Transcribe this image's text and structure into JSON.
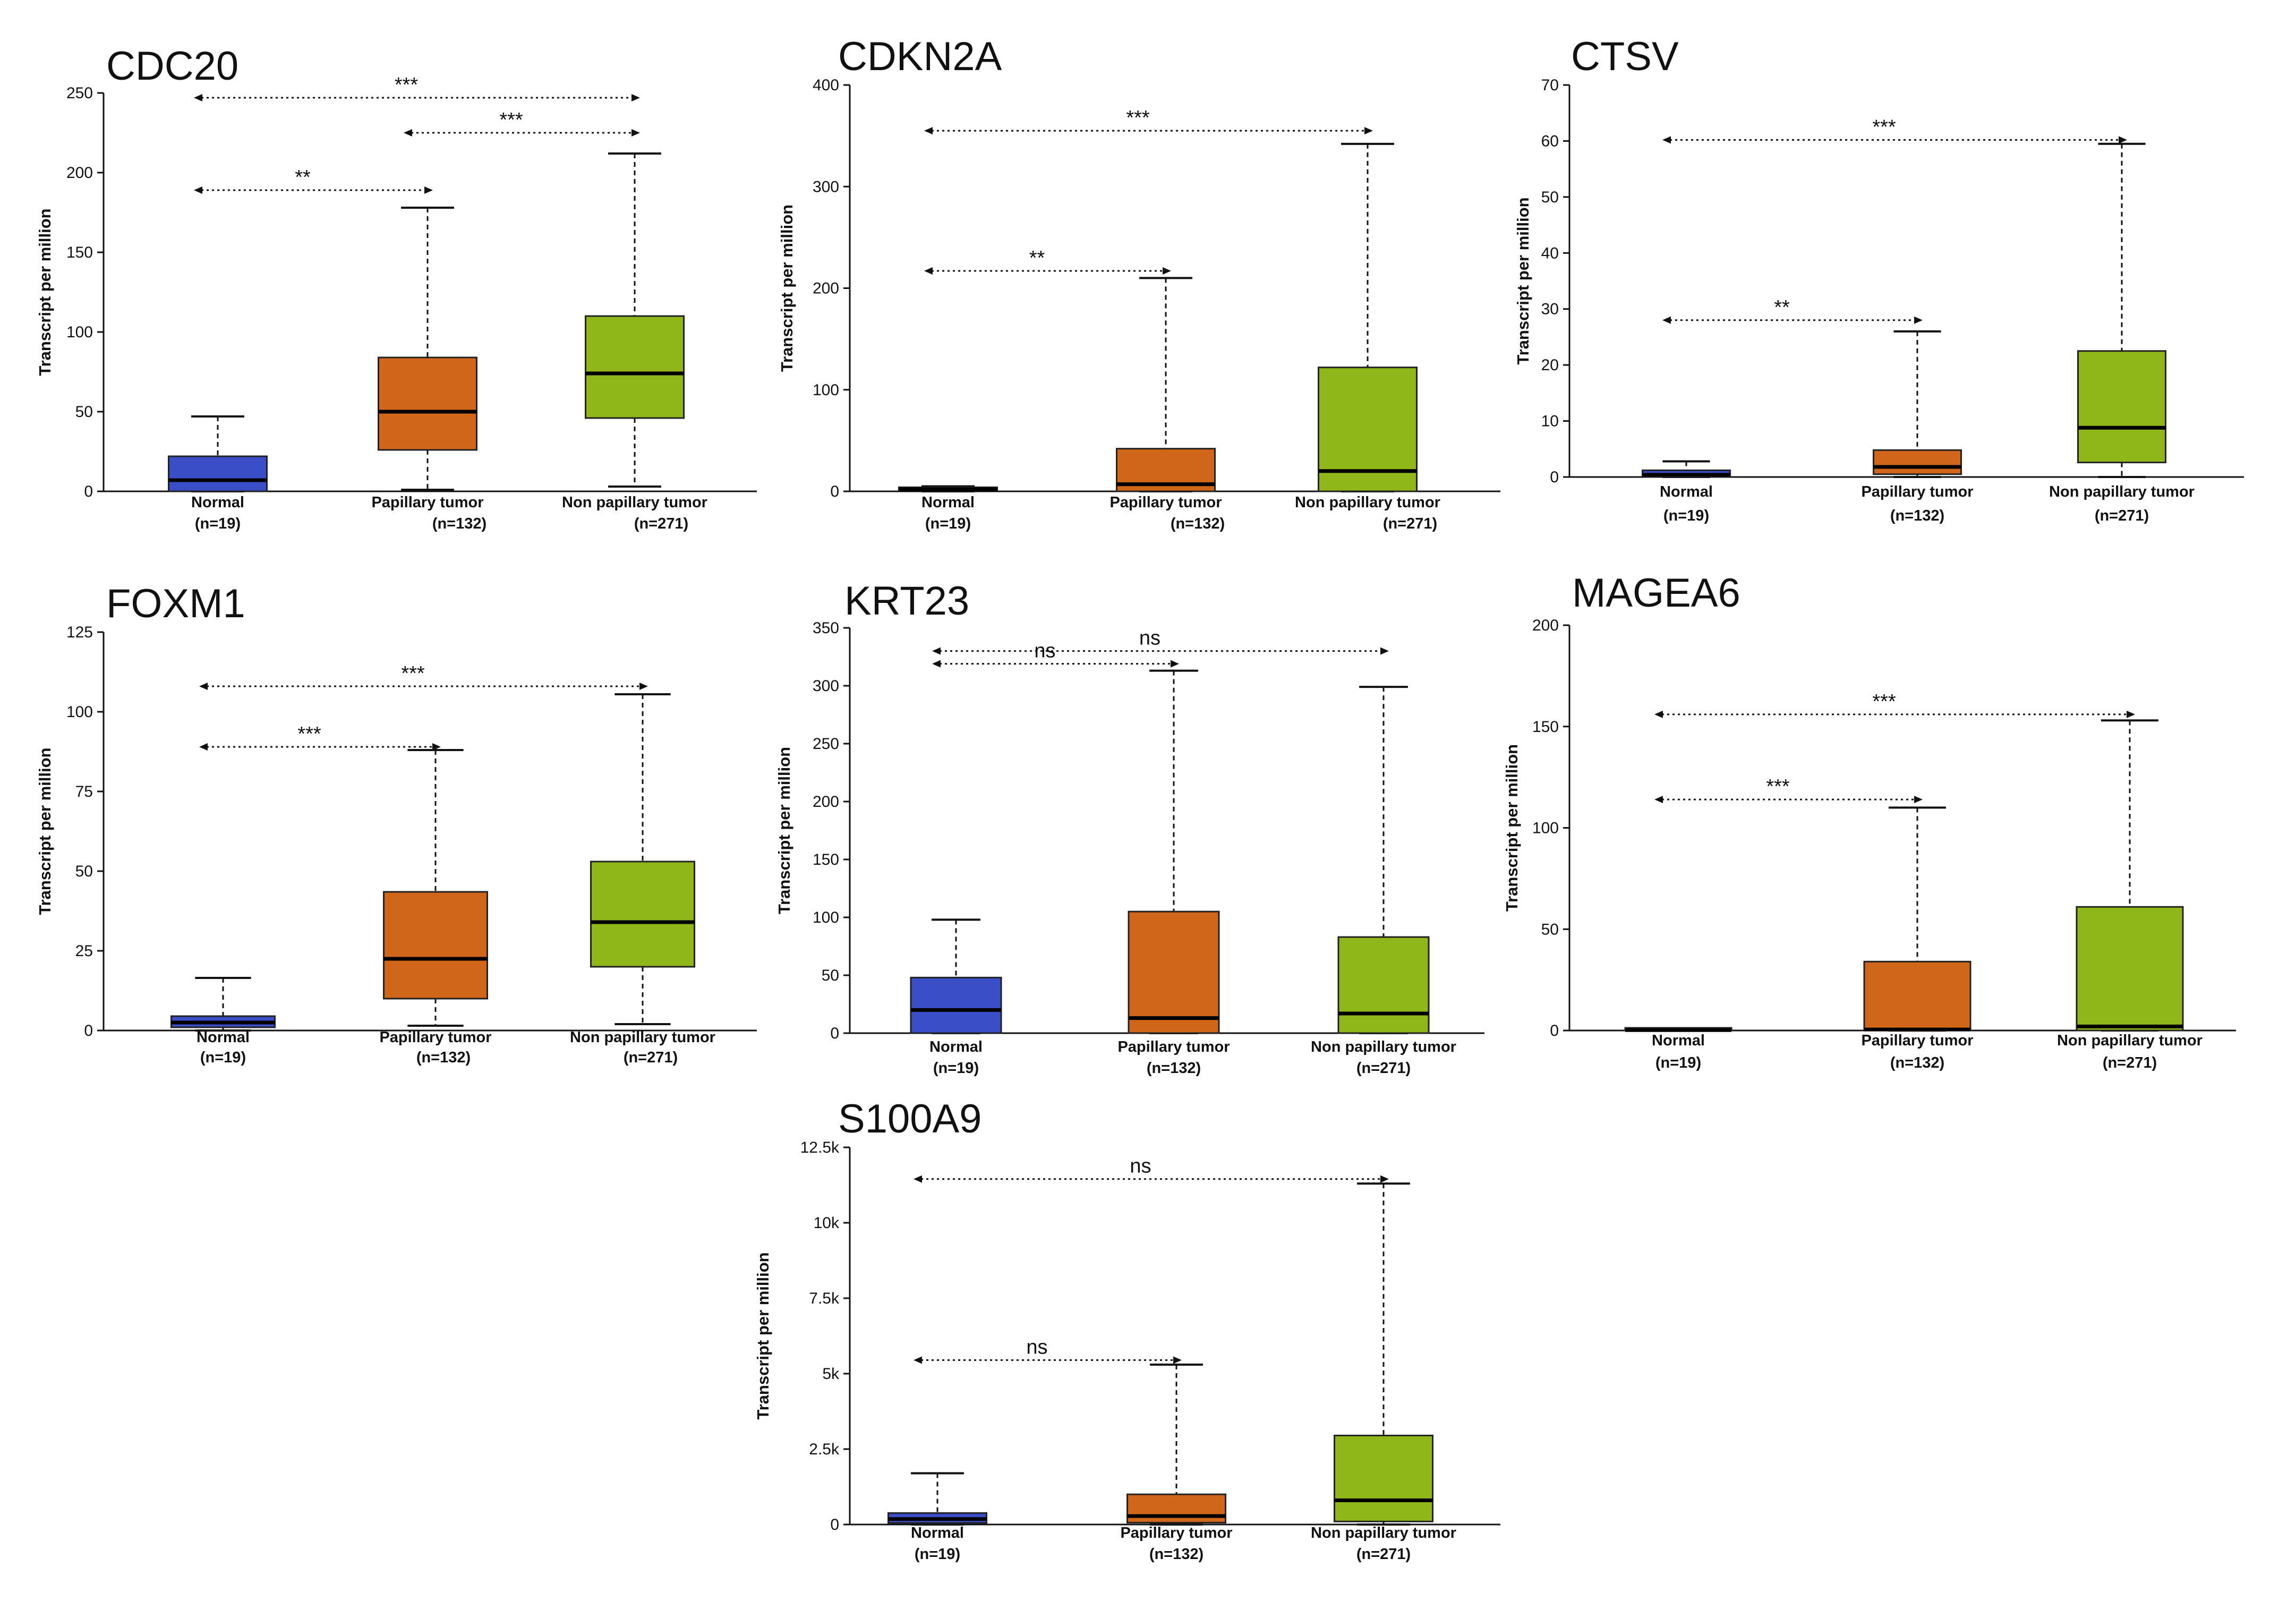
{
  "colors": {
    "normal": "#3a4fc7",
    "papillary": "#d0661a",
    "non_papillary": "#8fb71a"
  },
  "y_axis_label": "Transcript per million",
  "chart_data": [
    {
      "type": "box",
      "title": "CDC20",
      "ylabel": "Transcript per million",
      "ylim": [
        0,
        250
      ],
      "ticks": [
        0,
        50,
        100,
        150,
        200,
        250
      ],
      "tick_labels": [
        "0",
        "50",
        "100",
        "150",
        "200",
        "250"
      ],
      "categories": [
        "Normal",
        "Papillary  tumor",
        "Non papillary  tumor"
      ],
      "counts": [
        "(n=19)",
        "(n=132)",
        "(n=271)"
      ],
      "boxes": [
        {
          "min": 0,
          "q1": 0,
          "median": 7,
          "q3": 22,
          "max": 47
        },
        {
          "min": 1,
          "q1": 26,
          "median": 50,
          "q3": 84,
          "max": 178
        },
        {
          "min": 3,
          "q1": 46,
          "median": 74,
          "q3": 110,
          "max": 212
        }
      ],
      "comparisons": [
        {
          "from": 0,
          "to": 2,
          "y": 247,
          "label": "***"
        },
        {
          "from": 1,
          "to": 2,
          "y": 225,
          "label": "***"
        },
        {
          "from": 0,
          "to": 1,
          "y": 189,
          "label": "**"
        }
      ]
    },
    {
      "type": "box",
      "title": "CDKN2A",
      "ylabel": "Transcript per million",
      "ylim": [
        0,
        400
      ],
      "ticks": [
        0,
        100,
        200,
        300,
        400
      ],
      "tick_labels": [
        "0",
        "100",
        "200",
        "300",
        "400"
      ],
      "categories": [
        "Normal",
        "Papillary  tumor",
        "Non papillary  tumor"
      ],
      "counts": [
        "(n=19)",
        "(n=132)",
        "(n=271)"
      ],
      "boxes": [
        {
          "min": 0,
          "q1": 1,
          "median": 2,
          "q3": 4,
          "max": 5
        },
        {
          "min": 0,
          "q1": 0,
          "median": 7,
          "q3": 42,
          "max": 210
        },
        {
          "min": 0,
          "q1": 0,
          "median": 20,
          "q3": 122,
          "max": 342
        }
      ],
      "comparisons": [
        {
          "from": 0,
          "to": 2,
          "y": 355,
          "label": "***"
        },
        {
          "from": 0,
          "to": 1,
          "y": 217,
          "label": "**"
        }
      ]
    },
    {
      "type": "box",
      "title": "CTSV",
      "ylabel": "Transcript per million",
      "ylim": [
        0,
        70
      ],
      "ticks": [
        0,
        10,
        20,
        30,
        40,
        50,
        60,
        70
      ],
      "tick_labels": [
        "0",
        "10",
        "20",
        "30",
        "40",
        "50",
        "60",
        "70"
      ],
      "categories": [
        "Normal",
        "Papillary  tumor",
        "Non papillary  tumor"
      ],
      "counts": [
        "(n=19)",
        "(n=132)",
        "(n=271)"
      ],
      "boxes": [
        {
          "min": 0,
          "q1": 0,
          "median": 0.4,
          "q3": 1.2,
          "max": 2.8
        },
        {
          "min": 0,
          "q1": 0.5,
          "median": 1.8,
          "q3": 4.8,
          "max": 26
        },
        {
          "min": 0,
          "q1": 2.6,
          "median": 8.8,
          "q3": 22.5,
          "max": 59.5
        }
      ],
      "comparisons": [
        {
          "from": 0,
          "to": 2,
          "y": 60.2,
          "label": "***"
        },
        {
          "from": 0,
          "to": 1,
          "y": 28,
          "label": "**"
        }
      ]
    },
    {
      "type": "box",
      "title": "FOXM1",
      "ylabel": "Transcript per million",
      "ylim": [
        0,
        125
      ],
      "ticks": [
        0,
        25,
        50,
        75,
        100,
        125
      ],
      "tick_labels": [
        "0",
        "25",
        "50",
        "75",
        "100",
        "125"
      ],
      "categories": [
        "Normal",
        "Papillary  tumor",
        "Non papillary  tumor"
      ],
      "counts": [
        "(n=19)",
        "(n=132)",
        "(n=271)"
      ],
      "boxes": [
        {
          "min": 0,
          "q1": 1,
          "median": 2.5,
          "q3": 4.5,
          "max": 16.5
        },
        {
          "min": 1.5,
          "q1": 10,
          "median": 22.5,
          "q3": 43.5,
          "max": 88
        },
        {
          "min": 2,
          "q1": 20,
          "median": 34,
          "q3": 53,
          "max": 105.5
        }
      ],
      "comparisons": [
        {
          "from": 0,
          "to": 2,
          "y": 108,
          "label": "***"
        },
        {
          "from": 0,
          "to": 1,
          "y": 89,
          "label": "***"
        }
      ]
    },
    {
      "type": "box",
      "title": "KRT23",
      "ylabel": "Transcript per million",
      "ylim": [
        0,
        350
      ],
      "ticks": [
        0,
        50,
        100,
        150,
        200,
        250,
        300,
        350
      ],
      "tick_labels": [
        "0",
        "50",
        "100",
        "150",
        "200",
        "250",
        "300",
        "350"
      ],
      "categories": [
        "Normal",
        "Papillary  tumor",
        "Non papillary  tumor"
      ],
      "counts": [
        "(n=19)",
        "(n=132)",
        "(n=271)"
      ],
      "boxes": [
        {
          "min": 0,
          "q1": 0,
          "median": 20,
          "q3": 48,
          "max": 98
        },
        {
          "min": 0,
          "q1": 0,
          "median": 13,
          "q3": 105,
          "max": 313
        },
        {
          "min": 0,
          "q1": 0,
          "median": 17,
          "q3": 83,
          "max": 299
        }
      ],
      "comparisons": [
        {
          "from": 0,
          "to": 2,
          "y": 330,
          "label": "ns"
        },
        {
          "from": 0,
          "to": 1,
          "y": 319,
          "label": "ns"
        }
      ]
    },
    {
      "type": "box",
      "title": "MAGEA6",
      "ylabel": "Transcript per million",
      "ylim": [
        0,
        200
      ],
      "ticks": [
        0,
        50,
        100,
        150,
        200
      ],
      "tick_labels": [
        "0",
        "50",
        "100",
        "150",
        "200"
      ],
      "categories": [
        "Normal",
        "Papillary  tumor",
        "Non papillary  tumor"
      ],
      "counts": [
        "(n=19)",
        "(n=132)",
        "(n=271)"
      ],
      "boxes": [
        {
          "min": 0,
          "q1": 0,
          "median": 0.2,
          "q3": 0.5,
          "max": 0.8
        },
        {
          "min": 0,
          "q1": 0,
          "median": 0.5,
          "q3": 34,
          "max": 110
        },
        {
          "min": 0,
          "q1": 0,
          "median": 2,
          "q3": 61,
          "max": 153
        }
      ],
      "comparisons": [
        {
          "from": 0,
          "to": 2,
          "y": 156,
          "label": "***"
        },
        {
          "from": 0,
          "to": 1,
          "y": 114,
          "label": "***"
        }
      ]
    },
    {
      "type": "box",
      "title": "S100A9",
      "ylabel": "Transcript per million",
      "ylim": [
        0,
        12500
      ],
      "ticks": [
        0,
        2500,
        5000,
        7500,
        10000,
        12500
      ],
      "tick_labels": [
        "0",
        "2.5k",
        "5k",
        "7.5k",
        "10k",
        "12.5k"
      ],
      "categories": [
        "Normal",
        "Papillary  tumor",
        "Non papillary  tumor"
      ],
      "counts": [
        "(n=19)",
        "(n=132)",
        "(n=271)"
      ],
      "boxes": [
        {
          "min": 0,
          "q1": 50,
          "median": 180,
          "q3": 380,
          "max": 1700
        },
        {
          "min": 0,
          "q1": 60,
          "median": 280,
          "q3": 1000,
          "max": 5300
        },
        {
          "min": 0,
          "q1": 100,
          "median": 800,
          "q3": 2950,
          "max": 11300
        }
      ],
      "comparisons": [
        {
          "from": 0,
          "to": 2,
          "y": 11450,
          "label": "ns"
        },
        {
          "from": 0,
          "to": 1,
          "y": 5450,
          "label": "ns"
        }
      ]
    }
  ]
}
